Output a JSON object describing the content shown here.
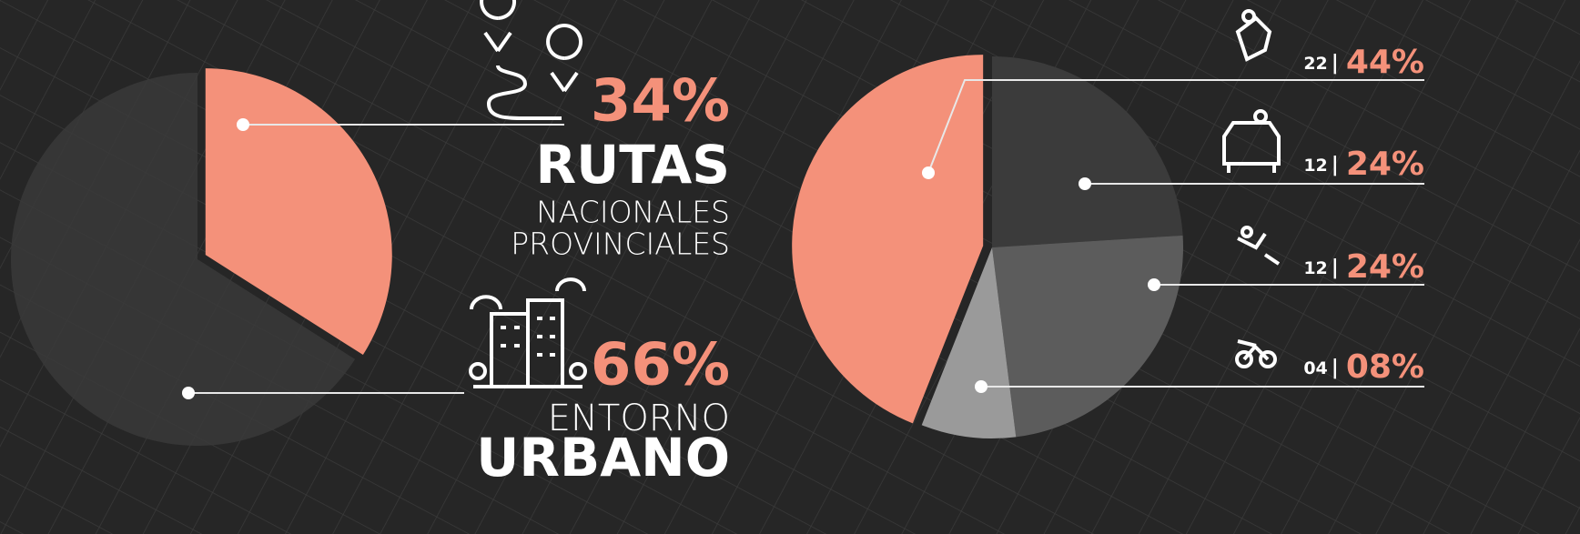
{
  "chart_data": [
    {
      "type": "pie",
      "categories": [
        [
          "RUTAS",
          "NACIONALES",
          "PROVINCIALES"
        ],
        [
          "ENTORNO",
          "URBANO"
        ]
      ],
      "values": [
        34,
        66
      ],
      "value_labels": [
        "34%",
        "66%"
      ],
      "colors": [
        "#f4917a",
        "#3a3a3a"
      ]
    },
    {
      "type": "pie",
      "values": [
        44,
        24,
        24,
        8
      ],
      "value_labels": [
        "44%",
        "24%",
        "24%",
        "08%"
      ],
      "counts": [
        22,
        12,
        12,
        4
      ],
      "count_labels": [
        "22",
        "12",
        "12",
        "04"
      ],
      "separator": "|",
      "colors": [
        "#f4917a",
        "#3b3b3b",
        "#5c5c5c",
        "#9a9a9a"
      ]
    }
  ]
}
